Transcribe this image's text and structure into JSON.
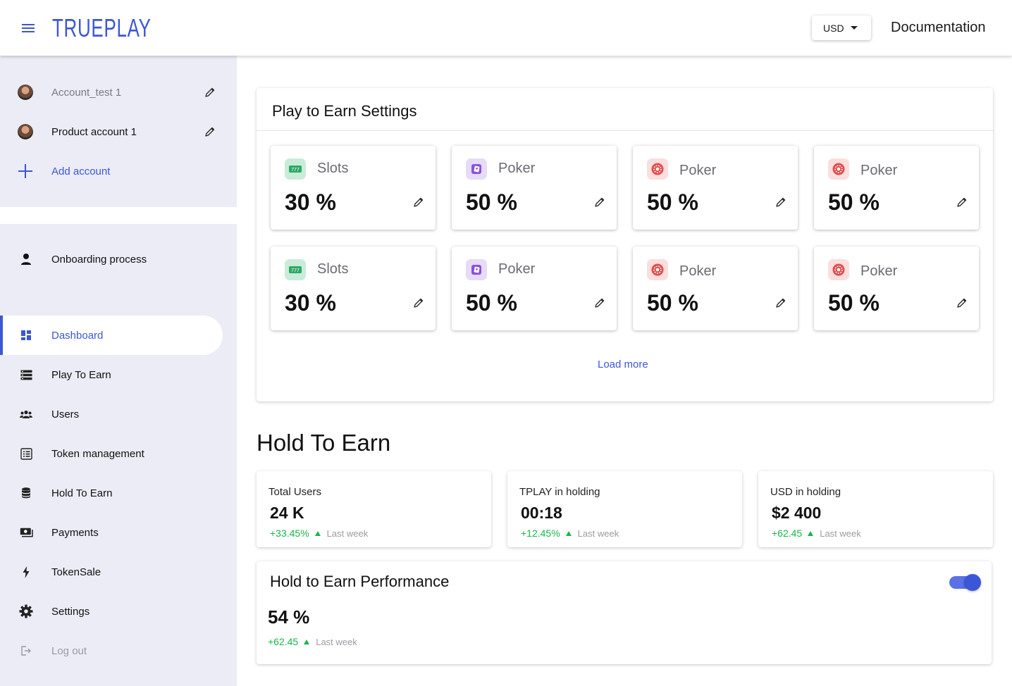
{
  "header": {
    "logo": "TRUEPLAY",
    "currency": "USD",
    "docs_link": "Documentation"
  },
  "accounts": [
    {
      "label": "Account_test 1",
      "muted": true
    },
    {
      "label": "Product account 1",
      "muted": false
    }
  ],
  "add_account_label": "Add account",
  "nav": {
    "onboarding": "Onboarding process",
    "items": [
      {
        "label": "Dashboard",
        "icon": "dashboard-icon"
      },
      {
        "label": "Play To Earn",
        "icon": "storage-icon"
      },
      {
        "label": "Users",
        "icon": "users-icon"
      },
      {
        "label": "Token management",
        "icon": "list-alt-icon"
      },
      {
        "label": "Hold To Earn",
        "icon": "database-icon"
      },
      {
        "label": "Payments",
        "icon": "payments-icon"
      },
      {
        "label": "TokenSale",
        "icon": "bolt-icon"
      },
      {
        "label": "Settings",
        "icon": "gear-icon"
      },
      {
        "label": "Log out",
        "icon": "logout-icon"
      }
    ]
  },
  "p2e": {
    "title": "Play to Earn Settings",
    "games": [
      {
        "name": "Slots",
        "value": "30 %",
        "icon": "slots-icon"
      },
      {
        "name": "Poker",
        "value": "50 %",
        "icon": "poker-cards-icon"
      },
      {
        "name": "Poker",
        "value": "50 %",
        "icon": "poker-chip-icon"
      },
      {
        "name": "Poker",
        "value": "50 %",
        "icon": "poker-chip-icon"
      },
      {
        "name": "Slots",
        "value": "30 %",
        "icon": "slots-icon"
      },
      {
        "name": "Poker",
        "value": "50 %",
        "icon": "poker-cards-icon"
      },
      {
        "name": "Poker",
        "value": "50 %",
        "icon": "poker-chip-icon"
      },
      {
        "name": "Poker",
        "value": "50 %",
        "icon": "poker-chip-icon"
      }
    ],
    "load_more": "Load more"
  },
  "h2e": {
    "title": "Hold To Earn",
    "stats": [
      {
        "label": "Total Users",
        "value": "24 K",
        "delta": "+33.45%",
        "period": "Last week"
      },
      {
        "label": "TPLAY in holding",
        "value": "00:18",
        "delta": "+12.45%",
        "period": "Last week"
      },
      {
        "label": "USD in holding",
        "value": "$2 400",
        "delta": "+62.45",
        "period": "Last week"
      }
    ],
    "performance": {
      "title": "Hold to Earn Performance",
      "value": "54 %",
      "delta": "+62.45",
      "period": "Last week",
      "toggle_on": true
    }
  },
  "colors": {
    "accent": "#3b57d6",
    "positive": "#16b74a",
    "sidebar_bg": "#ececf6"
  }
}
